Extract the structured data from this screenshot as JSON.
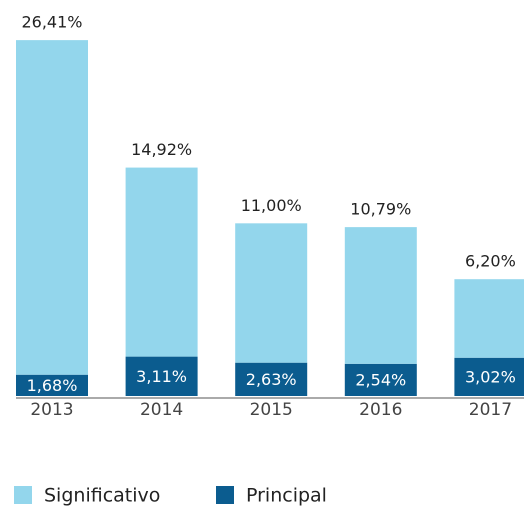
{
  "chart_data": {
    "type": "stacked_bar",
    "categories": [
      "2013",
      "2014",
      "2015",
      "2016",
      "2017"
    ],
    "series": [
      {
        "name": "Principal",
        "color": "#0b5c8f",
        "values": [
          1.68,
          3.11,
          2.63,
          2.54,
          3.02
        ],
        "value_labels": [
          "1,68%",
          "3,11%",
          "2,63%",
          "2,54%",
          "3,02%"
        ]
      },
      {
        "name": "Significativo",
        "color": "#93d6ec",
        "values": [
          26.41,
          14.92,
          11.0,
          10.79,
          6.2
        ],
        "value_labels": [
          "26,41%",
          "14,92%",
          "11,00%",
          "10,79%",
          "6,20%"
        ]
      }
    ],
    "ylim": [
      0,
      28.1
    ]
  }
}
